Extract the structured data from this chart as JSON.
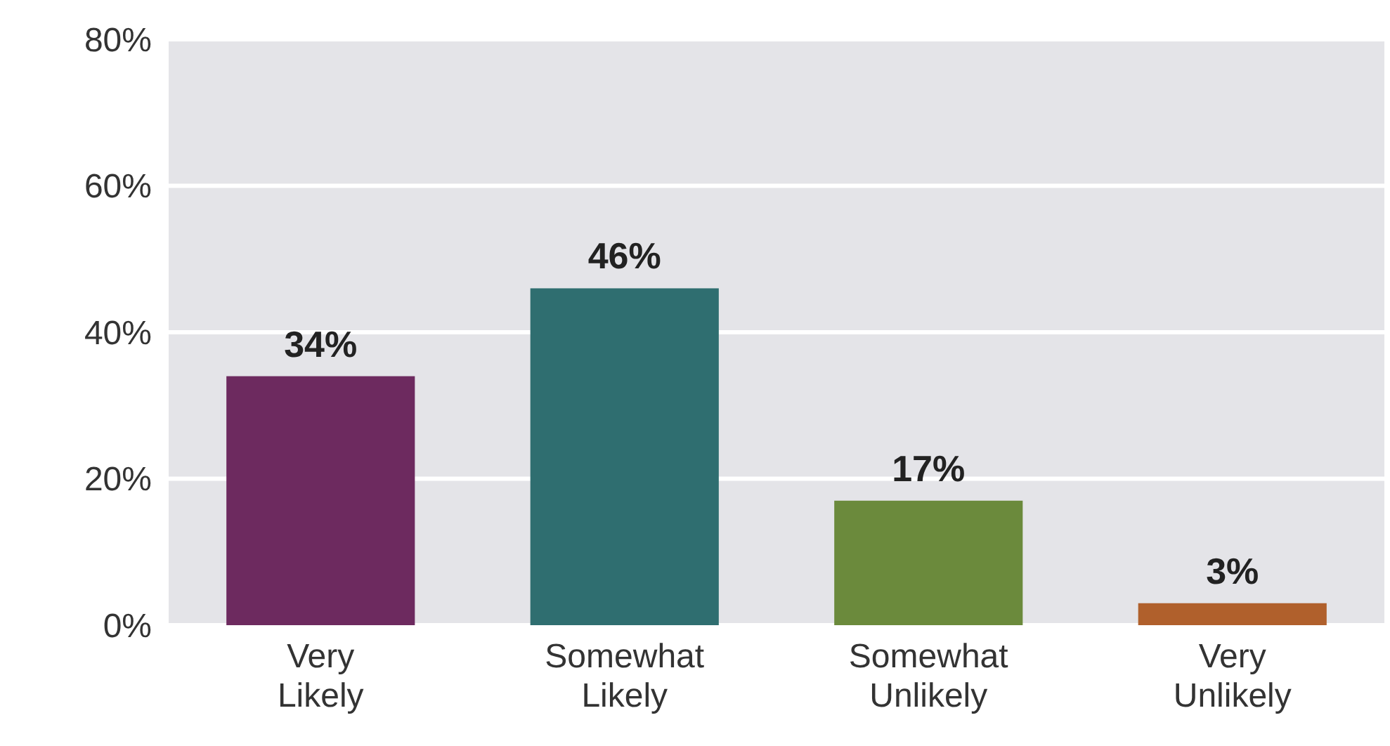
{
  "chart_data": {
    "type": "bar",
    "categories": [
      "Very Likely",
      "Somewhat Likely",
      "Somewhat Unlikely",
      "Very Unlikely"
    ],
    "values": [
      34,
      46,
      17,
      3
    ],
    "colors": [
      "#6d2a5f",
      "#2f6e70",
      "#6b8a3c",
      "#b0602c"
    ],
    "ylim": [
      0,
      80
    ],
    "yticks": [
      {
        "value": 0,
        "label": "0%"
      },
      {
        "value": 20,
        "label": "20%"
      },
      {
        "value": 40,
        "label": "40%"
      },
      {
        "value": 60,
        "label": "60%"
      },
      {
        "value": 80,
        "label": "80%"
      }
    ],
    "grid": "y",
    "data_labels": true,
    "value_labels": [
      "34%",
      "46%",
      "17%",
      "3%"
    ]
  }
}
